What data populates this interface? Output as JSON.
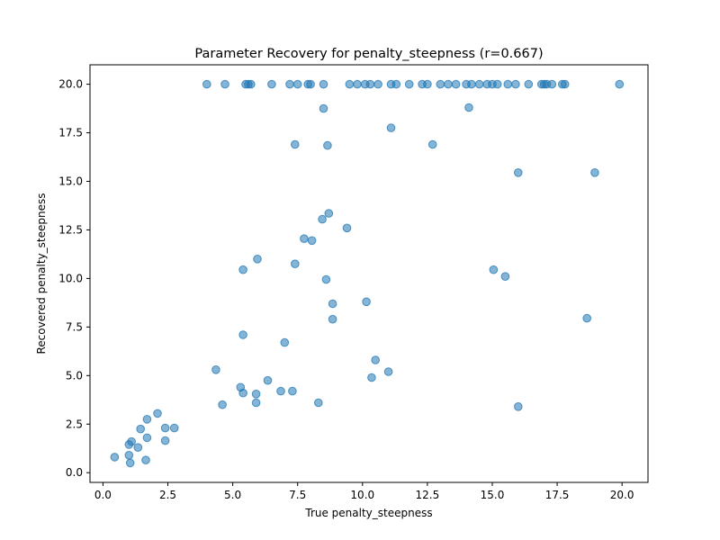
{
  "chart_data": {
    "type": "scatter",
    "title": "Parameter Recovery for penalty_steepness (r=0.667)",
    "xlabel": "True penalty_steepness",
    "ylabel": "Recovered penalty_steepness",
    "xlim": [
      -0.5,
      21.0
    ],
    "ylim": [
      -0.5,
      21.0
    ],
    "xticks": [
      0.0,
      2.5,
      5.0,
      7.5,
      10.0,
      12.5,
      15.0,
      17.5,
      20.0
    ],
    "yticks": [
      0.0,
      2.5,
      5.0,
      7.5,
      10.0,
      12.5,
      15.0,
      17.5,
      20.0
    ],
    "xtick_labels": [
      "0.0",
      "2.5",
      "5.0",
      "7.5",
      "10.0",
      "12.5",
      "15.0",
      "17.5",
      "20.0"
    ],
    "ytick_labels": [
      "0.0",
      "2.5",
      "5.0",
      "7.5",
      "10.0",
      "12.5",
      "15.0",
      "17.5",
      "20.0"
    ],
    "grid": false,
    "marker_color": "#1f77b4",
    "marker_alpha": 0.55,
    "points": [
      [
        4.0,
        20.0
      ],
      [
        4.7,
        20.0
      ],
      [
        5.5,
        20.0
      ],
      [
        5.6,
        20.0
      ],
      [
        5.7,
        20.0
      ],
      [
        6.5,
        20.0
      ],
      [
        7.2,
        20.0
      ],
      [
        7.5,
        20.0
      ],
      [
        7.9,
        20.0
      ],
      [
        8.0,
        20.0
      ],
      [
        8.5,
        20.0
      ],
      [
        9.5,
        20.0
      ],
      [
        9.8,
        20.0
      ],
      [
        10.1,
        20.0
      ],
      [
        10.3,
        20.0
      ],
      [
        10.6,
        20.0
      ],
      [
        11.1,
        20.0
      ],
      [
        11.3,
        20.0
      ],
      [
        11.8,
        20.0
      ],
      [
        12.3,
        20.0
      ],
      [
        12.5,
        20.0
      ],
      [
        13.0,
        20.0
      ],
      [
        13.3,
        20.0
      ],
      [
        13.6,
        20.0
      ],
      [
        14.0,
        20.0
      ],
      [
        14.2,
        20.0
      ],
      [
        14.5,
        20.0
      ],
      [
        14.8,
        20.0
      ],
      [
        15.0,
        20.0
      ],
      [
        15.2,
        20.0
      ],
      [
        15.6,
        20.0
      ],
      [
        15.9,
        20.0
      ],
      [
        16.4,
        20.0
      ],
      [
        16.9,
        20.0
      ],
      [
        17.0,
        20.0
      ],
      [
        17.1,
        20.0
      ],
      [
        17.3,
        20.0
      ],
      [
        17.7,
        20.0
      ],
      [
        17.8,
        20.0
      ],
      [
        19.9,
        20.0
      ],
      [
        8.5,
        18.75
      ],
      [
        11.1,
        17.75
      ],
      [
        14.1,
        18.8
      ],
      [
        7.4,
        16.9
      ],
      [
        8.65,
        16.85
      ],
      [
        12.7,
        16.9
      ],
      [
        16.0,
        15.45
      ],
      [
        18.95,
        15.45
      ],
      [
        8.7,
        13.35
      ],
      [
        8.45,
        13.05
      ],
      [
        9.4,
        12.6
      ],
      [
        7.75,
        12.05
      ],
      [
        8.05,
        11.95
      ],
      [
        5.95,
        11.0
      ],
      [
        5.4,
        10.45
      ],
      [
        7.4,
        10.75
      ],
      [
        8.6,
        9.95
      ],
      [
        15.05,
        10.45
      ],
      [
        15.5,
        10.1
      ],
      [
        8.85,
        8.7
      ],
      [
        10.15,
        8.8
      ],
      [
        8.85,
        7.9
      ],
      [
        18.65,
        7.95
      ],
      [
        5.4,
        7.1
      ],
      [
        7.0,
        6.7
      ],
      [
        10.5,
        5.8
      ],
      [
        10.35,
        4.9
      ],
      [
        11.0,
        5.2
      ],
      [
        4.35,
        5.3
      ],
      [
        5.3,
        4.4
      ],
      [
        5.4,
        4.1
      ],
      [
        6.35,
        4.75
      ],
      [
        5.9,
        4.05
      ],
      [
        5.9,
        3.6
      ],
      [
        6.85,
        4.2
      ],
      [
        7.3,
        4.2
      ],
      [
        4.6,
        3.5
      ],
      [
        8.3,
        3.6
      ],
      [
        16.0,
        3.4
      ],
      [
        2.1,
        3.05
      ],
      [
        1.7,
        2.75
      ],
      [
        1.45,
        2.25
      ],
      [
        2.4,
        2.3
      ],
      [
        2.75,
        2.3
      ],
      [
        1.7,
        1.8
      ],
      [
        2.4,
        1.65
      ],
      [
        1.0,
        1.45
      ],
      [
        1.1,
        1.6
      ],
      [
        1.35,
        1.3
      ],
      [
        1.0,
        0.9
      ],
      [
        0.45,
        0.8
      ],
      [
        1.05,
        0.5
      ],
      [
        1.65,
        0.65
      ]
    ]
  }
}
